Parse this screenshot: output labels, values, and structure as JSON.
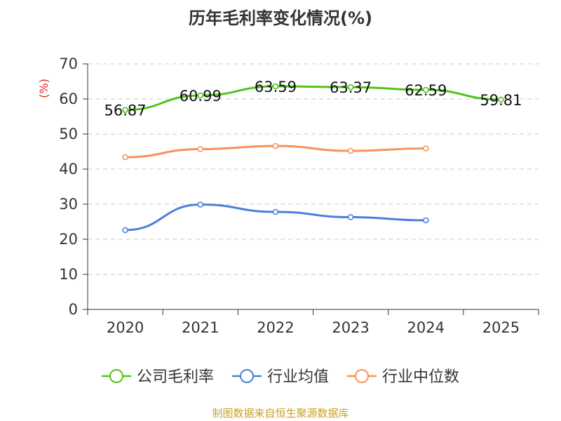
{
  "chart_data": {
    "type": "line",
    "title": "历年毛利率变化情况(%)",
    "xlabel": "",
    "ylabel": "(%)",
    "categories": [
      "2020",
      "2021",
      "2022",
      "2023",
      "2024",
      "2025"
    ],
    "ylim": [
      0,
      70
    ],
    "yticks": [
      0,
      10,
      20,
      30,
      40,
      50,
      60,
      70
    ],
    "grid": true,
    "legend_position": "bottom",
    "series": [
      {
        "name": "公司毛利率",
        "color": "#52c41a",
        "show_labels": true,
        "values": [
          56.87,
          60.99,
          63.59,
          63.37,
          62.59,
          59.81
        ],
        "labels": [
          "56.87",
          "60.99",
          "63.59",
          "63.37",
          "62.59",
          "59.81"
        ]
      },
      {
        "name": "行业均值",
        "color": "#4a7fdc",
        "show_labels": false,
        "values": [
          22.6,
          29.9,
          27.8,
          26.3,
          25.4,
          null
        ]
      },
      {
        "name": "行业中位数",
        "color": "#f7925c",
        "show_labels": false,
        "values": [
          43.4,
          45.7,
          46.6,
          45.2,
          45.9,
          null
        ]
      }
    ]
  },
  "source": "制图数据来自恒生聚源数据库"
}
